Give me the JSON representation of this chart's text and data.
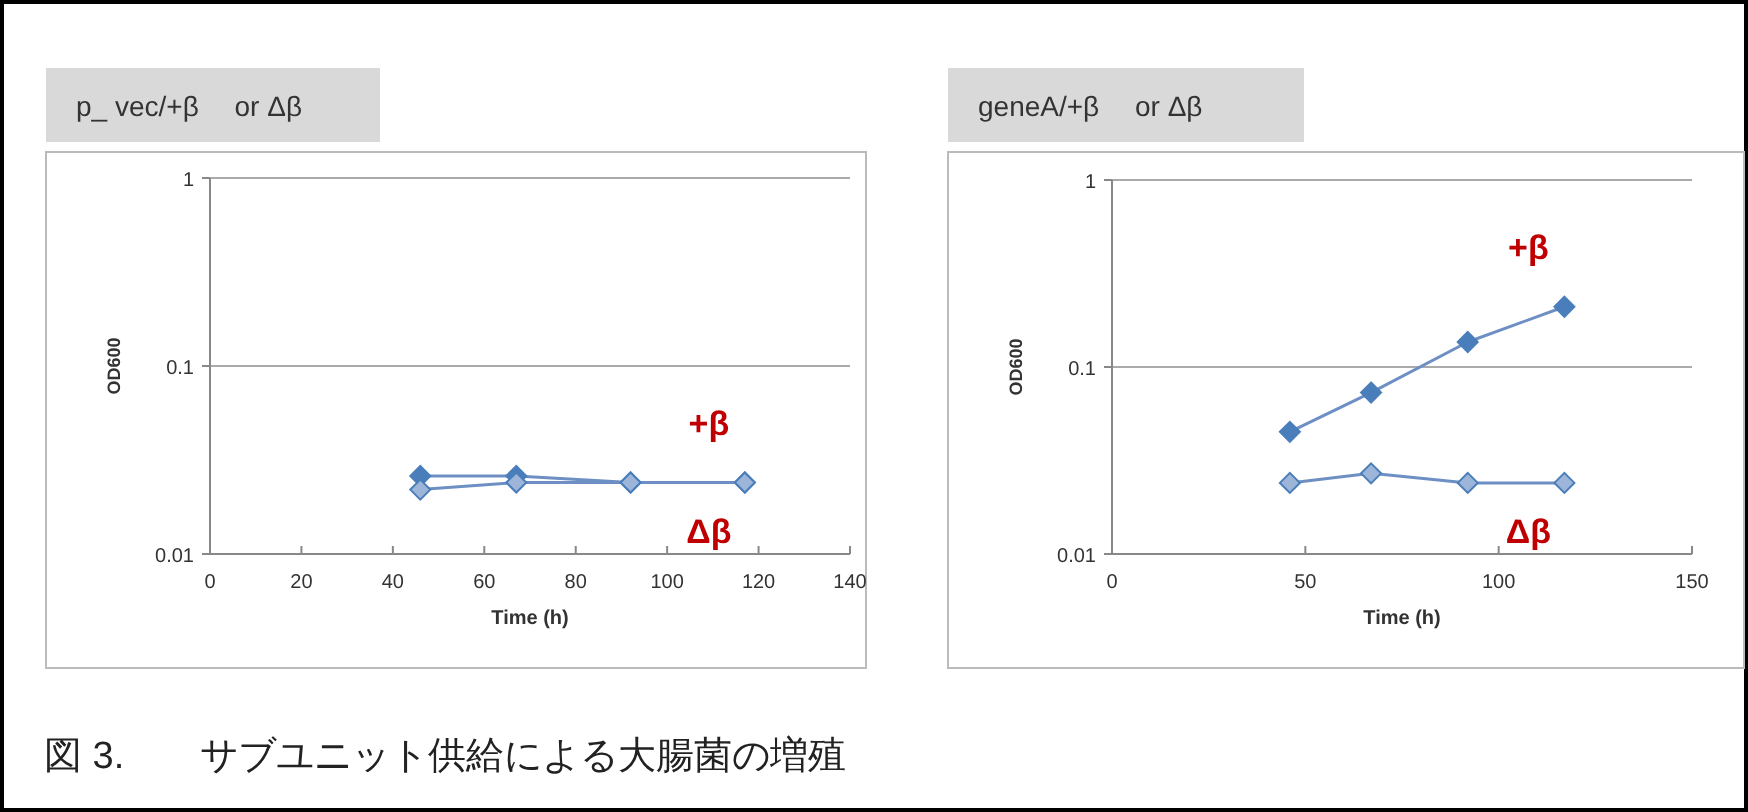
{
  "chart_data": [
    {
      "type": "line",
      "title": "p_ vec/+β　 or Δβ",
      "xlabel": "Time (h)",
      "ylabel": "OD600",
      "log": "y",
      "xlim": [
        0,
        140
      ],
      "xticks": [
        0,
        20,
        40,
        60,
        80,
        100,
        120,
        140
      ],
      "ylim": [
        0.01,
        1
      ],
      "yticks": [
        0.01,
        0.1,
        1
      ],
      "grid": "y",
      "marker": "diamond",
      "line_style": "solid",
      "x": [
        46,
        67,
        92,
        117
      ],
      "series": [
        {
          "name": "+β",
          "color": "#4a7ebb",
          "values": [
            0.026,
            0.026,
            0.024,
            0.024
          ]
        },
        {
          "name": "Δβ",
          "color": "#9db5d8",
          "values": [
            0.022,
            0.024,
            0.024,
            0.024
          ]
        }
      ]
    },
    {
      "type": "line",
      "title": "geneA/+β　 or Δβ",
      "xlabel": "Time (h)",
      "ylabel": "OD600",
      "log": "y",
      "xlim": [
        0,
        150
      ],
      "xticks": [
        0,
        50,
        100,
        150
      ],
      "ylim": [
        0.01,
        1
      ],
      "yticks": [
        0.01,
        0.1,
        1
      ],
      "grid": "y",
      "marker": "diamond",
      "line_style": "solid",
      "x": [
        46,
        67,
        92,
        117
      ],
      "series": [
        {
          "name": "+β",
          "color": "#4a7ebb",
          "values": [
            0.045,
            0.073,
            0.136,
            0.21
          ]
        },
        {
          "name": "Δβ",
          "color": "#9db5d8",
          "values": [
            0.024,
            0.027,
            0.024,
            0.024
          ]
        }
      ],
      "annotations": [
        "図 3.　　サブユニット供給による大腸菌の増殖"
      ]
    }
  ]
}
